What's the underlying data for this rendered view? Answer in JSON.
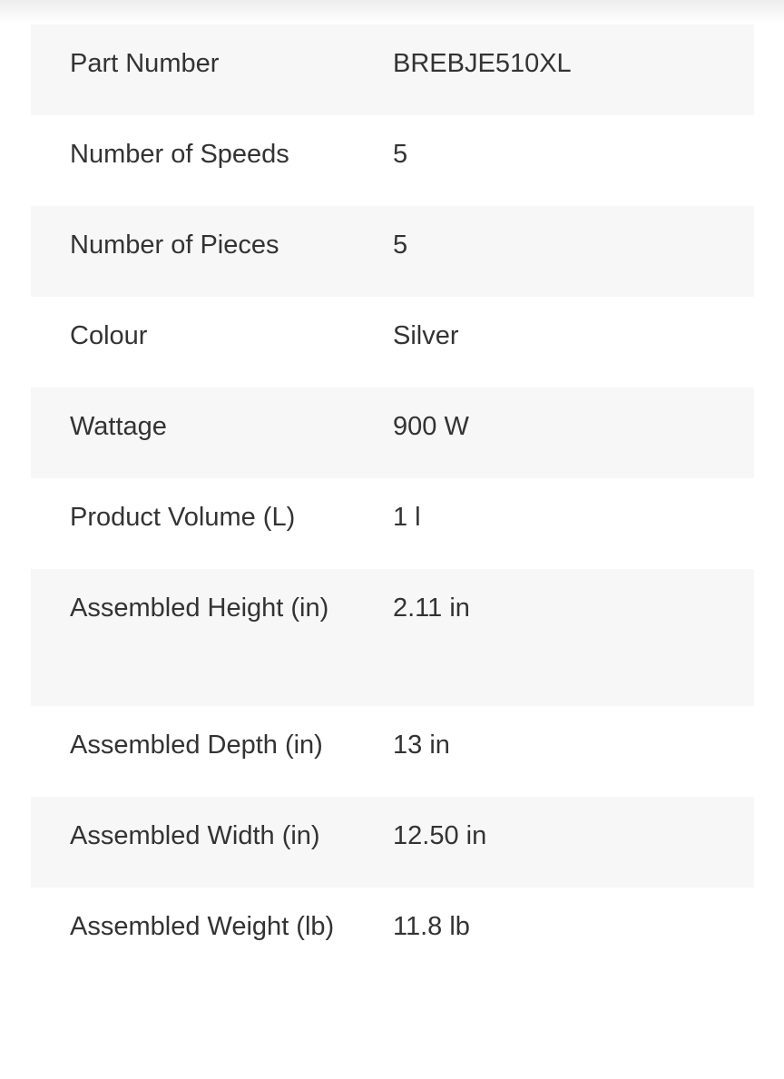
{
  "specs": [
    {
      "label": "Part Number",
      "value": "BREBJE510XL"
    },
    {
      "label": "Number of Speeds",
      "value": "5"
    },
    {
      "label": "Number of Pieces",
      "value": "5"
    },
    {
      "label": "Colour",
      "value": "Silver"
    },
    {
      "label": "Wattage",
      "value": "900 W"
    },
    {
      "label": "Product Volume (L)",
      "value": "1 l"
    },
    {
      "label": "Assembled Height (in)",
      "value": "2.11 in"
    },
    {
      "label": "Assembled Depth (in)",
      "value": "13 in"
    },
    {
      "label": "Assembled Width (in)",
      "value": "12.50 in"
    },
    {
      "label": "Assembled Weight (lb)",
      "value": "11.8 lb"
    }
  ]
}
